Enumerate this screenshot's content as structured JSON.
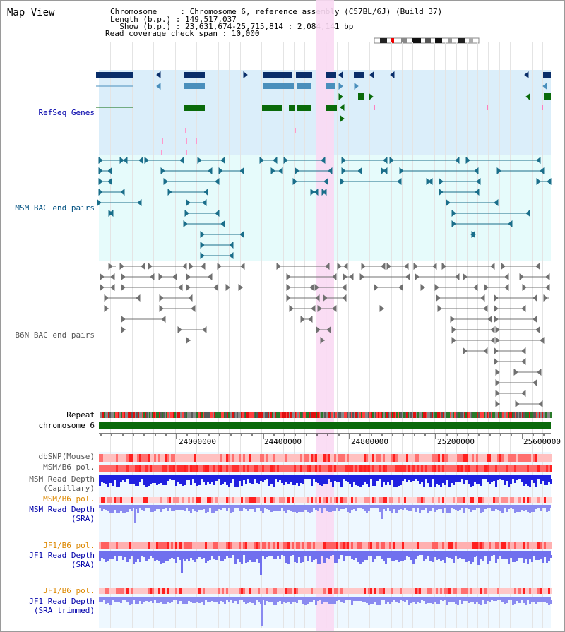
{
  "view_title": "Map View",
  "header": {
    "chromosome_line": "Chromosome     : Chromosome 6, reference assembly (C57BL/6J) (Build 37)",
    "length_line": "Length (b.p.) : 149,517,037",
    "show_line": "  Show (b.p.) : 23,631,674-25,715,814 : 2,084,141 bp",
    "coverage_line": "Read coverage check span : 10,000"
  },
  "tracks": {
    "refseq_label": "RefSeq Genes",
    "msm_bac_label": "MSM BAC end pairs",
    "b6n_bac_label": "B6N BAC end pairs",
    "repeat_label": "Repeat",
    "chromosome_label": "chromosome 6"
  },
  "axis": {
    "ticks": [
      "24000000",
      "24400000",
      "24800000",
      "25200000",
      "25600000"
    ]
  },
  "lower_tracks": {
    "dbsnp": "dbSNP(Mouse)",
    "msm_b6_pol_1": "MSM/B6 pol.",
    "msm_depth_cap_1": "MSM Read Depth",
    "msm_depth_cap_2": "(Capillary)",
    "msm_b6_pol_2": "MSM/B6 pol.",
    "msm_depth_sra_1": "MSM Read Depth",
    "msm_depth_sra_2": "(SRA)",
    "jf1_b6_pol_1": "JF1/B6 pol.",
    "jf1_depth_sra_1": "JF1 Read Depth",
    "jf1_depth_sra_2": "(SRA)",
    "jf1_b6_pol_2": "JF1/B6 pol.",
    "jf1_depth_trim_1": "JF1 Read Depth",
    "jf1_depth_trim_2": "(SRA trimmed)"
  },
  "colors": {
    "refseq_bg": "#dbeefa",
    "msm_bg": "#e6fbfb",
    "highlight": "#f9d9f3",
    "refseq_dark": "#0a2e6a",
    "refseq_blue": "#4a8fbc",
    "refseq_green": "#0a6a0a",
    "msm_feature": "#1a6e8a",
    "b6n_feature": "#707070",
    "label_blue": "#0000aa",
    "label_teal": "#005080",
    "label_gray": "#555555",
    "label_orange": "#dd8800",
    "depth_blue": "#2a2ae0",
    "depth_light": "#8a8af0"
  }
}
